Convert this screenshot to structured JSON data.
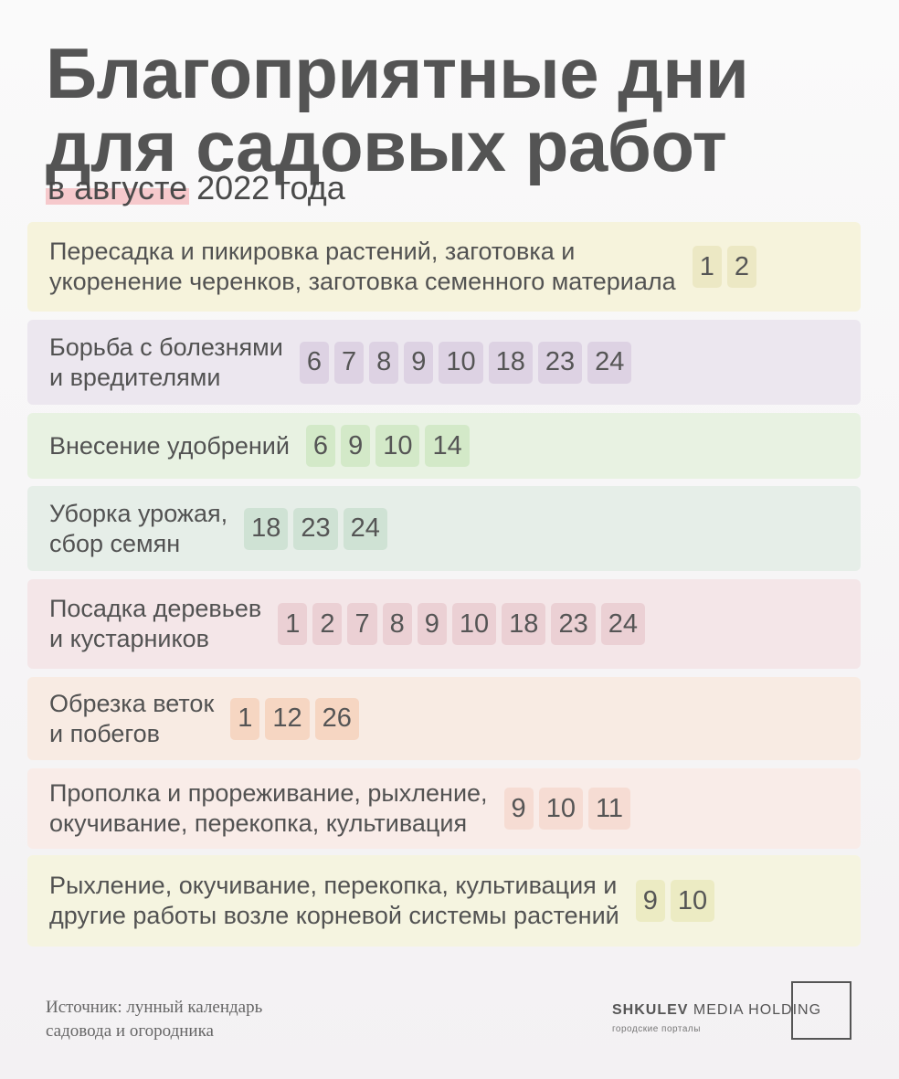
{
  "title": {
    "line1": "Благоприятные дни",
    "line2": "для садовых работ",
    "subtitle_highlight": "в августе",
    "subtitle_rest": " 2022 года"
  },
  "colors": {
    "yellow": "#f6f3dc",
    "yellow_day": "#ece8c4",
    "purple": "#ece7ef",
    "purple_day": "#ddd2e3",
    "green": "#e8f2e2",
    "green_day": "#d3e9c8",
    "mint": "#e6eee8",
    "mint_day": "#cfe2d4",
    "pink": "#f4e6e8",
    "pink_day": "#ebd0d4",
    "orange": "#f8ebe3",
    "orange_day": "#f6d6c2",
    "peach": "#f9ece8",
    "peach_day": "#f6dcd3",
    "lime": "#f5f4e0",
    "lime_day": "#ecebc3"
  },
  "rows": [
    {
      "label": "Пересадка и пикировка растений, заготовка и\nукоренение черенков, заготовка семенного материала",
      "days": [
        "1",
        "2"
      ]
    },
    {
      "label": "Борьба с болезнями\nи вредителями",
      "days": [
        "6",
        "7",
        "8",
        "9",
        "10",
        "18",
        "23",
        "24"
      ]
    },
    {
      "label": "Внесение удобрений",
      "days": [
        "6",
        "9",
        "10",
        "14"
      ]
    },
    {
      "label": "Уборка урожая,\nсбор семян",
      "days": [
        "18",
        "23",
        "24"
      ]
    },
    {
      "label": "Посадка деревьев\nи кустарников",
      "days": [
        "1",
        "2",
        "7",
        "8",
        "9",
        "10",
        "18",
        "23",
        "24"
      ]
    },
    {
      "label": "Обрезка веток\nи побегов",
      "days": [
        "1",
        "12",
        "26"
      ]
    },
    {
      "label": "Прополка и прореживание, рыхление,\nокучивание, перекопка, культивация",
      "days": [
        "9",
        "10",
        "11"
      ]
    },
    {
      "label": "Рыхление, окучивание, перекопка, культивация и\nдругие работы возле корневой системы растений",
      "days": [
        "9",
        "10"
      ]
    }
  ],
  "footer": {
    "source": "Источник: лунный календарь\nсадовода и огородника",
    "brand_bold": "SHKULEV",
    "brand_rest": " MEDIA HOLDING",
    "brand_sub": "городские порталы"
  }
}
